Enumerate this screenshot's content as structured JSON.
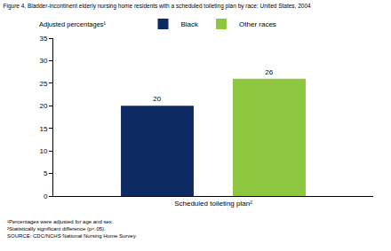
{
  "chart_data": {
    "type": "bar",
    "title": "Figure 4. Bladder-incontinent elderly nursing home residents with a scheduled toileting plan by race: United States, 2004",
    "ylabel": "Adjusted percentages¹",
    "categories": [
      "Scheduled toileting plan²"
    ],
    "series": [
      {
        "name": "Black",
        "color": "#0d2a63",
        "values": [
          20
        ]
      },
      {
        "name": "Other races",
        "color": "#8dc63f",
        "values": [
          26
        ]
      }
    ],
    "ylim": [
      0,
      35
    ],
    "yticks": [
      0,
      5,
      10,
      15,
      20,
      25,
      30,
      35
    ],
    "grid": false,
    "legend": "top",
    "data_labels": true,
    "notes": [
      "¹Percentages were adjusted for age and sex.",
      "²Statistically significant difference (p<.05).",
      "SOURCE: CDC/NCHS National Nursing Home Survey."
    ]
  }
}
